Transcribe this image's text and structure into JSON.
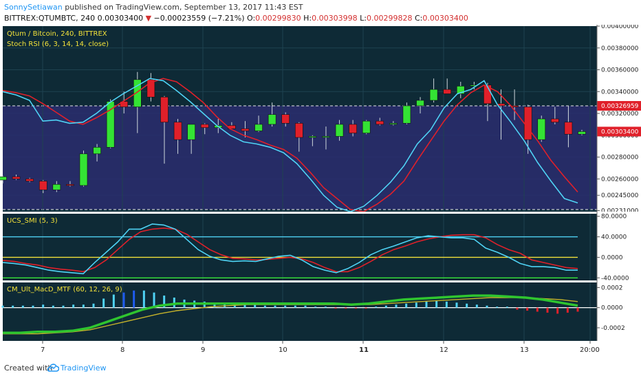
{
  "header": {
    "author": "SonnySetiawan",
    "published_text": "published on TradingView.com, September 13, 2017 11:43 EST",
    "symbol_line": "BITTREX:QTUMBTC, 240",
    "last": "0.00303400",
    "change_arrow": "▼",
    "change": "−0.00023559 (−7.21%)",
    "o_label": "O:",
    "o": "0.00299830",
    "h_label": "H:",
    "h": "0.00303998",
    "l_label": "L:",
    "l": "0.00299828",
    "c_label": "C:",
    "c": "0.00303400"
  },
  "footer": {
    "created_with": "Created with",
    "brand": "TradingView"
  },
  "colors": {
    "background": "#0e2a36",
    "rsi_band": "#2a2d6e",
    "up": "#34e334",
    "down": "#e0202a",
    "k_line": "#4fd3f5",
    "d_line": "#e0202a",
    "label_yellow": "#f3e23a"
  },
  "chart_data": [
    {
      "type": "candlestick",
      "title": "Qtum / Bitcoin, 240, BITTREX",
      "subtitle": "Stoch RSI (6, 3, 14, 14, close)",
      "x_tick_labels": [
        "7",
        "8",
        "9",
        "10",
        "11",
        "12",
        "13",
        "20:00"
      ],
      "y_tick_labels": [
        "0.00400000",
        "0.00380000",
        "0.00360000",
        "0.00340000",
        "0.00320000",
        "0.00300000",
        "0.00280000",
        "0.00260000",
        "0.00245000",
        "0.00231000"
      ],
      "ylim": [
        0.0023,
        0.004
      ],
      "price_labels": [
        "0.00326959",
        "0.00303400"
      ],
      "candles": [
        {
          "o": 0.00259,
          "h": 0.00263,
          "l": 0.00256,
          "c": 0.00262
        },
        {
          "o": 0.00262,
          "h": 0.00264,
          "l": 0.00259,
          "c": 0.0026
        },
        {
          "o": 0.0026,
          "h": 0.00261,
          "l": 0.00257,
          "c": 0.00258
        },
        {
          "o": 0.00258,
          "h": 0.00259,
          "l": 0.00247,
          "c": 0.0025
        },
        {
          "o": 0.0025,
          "h": 0.00258,
          "l": 0.00248,
          "c": 0.00255
        },
        {
          "o": 0.00255,
          "h": 0.00258,
          "l": 0.00253,
          "c": 0.00254
        },
        {
          "o": 0.00254,
          "h": 0.00286,
          "l": 0.00253,
          "c": 0.00283
        },
        {
          "o": 0.00283,
          "h": 0.00292,
          "l": 0.00276,
          "c": 0.00289
        },
        {
          "o": 0.00289,
          "h": 0.00333,
          "l": 0.00288,
          "c": 0.00331
        },
        {
          "o": 0.00331,
          "h": 0.0034,
          "l": 0.0032,
          "c": 0.00326
        },
        {
          "o": 0.00326,
          "h": 0.00358,
          "l": 0.00302,
          "c": 0.00351
        },
        {
          "o": 0.00351,
          "h": 0.00357,
          "l": 0.00331,
          "c": 0.00335
        },
        {
          "o": 0.00335,
          "h": 0.00336,
          "l": 0.00274,
          "c": 0.00312
        },
        {
          "o": 0.00312,
          "h": 0.00315,
          "l": 0.00283,
          "c": 0.00296
        },
        {
          "o": 0.00296,
          "h": 0.0031,
          "l": 0.00283,
          "c": 0.0031
        },
        {
          "o": 0.0031,
          "h": 0.00311,
          "l": 0.00301,
          "c": 0.00307
        },
        {
          "o": 0.00307,
          "h": 0.00315,
          "l": 0.00302,
          "c": 0.00309
        },
        {
          "o": 0.00309,
          "h": 0.00312,
          "l": 0.00305,
          "c": 0.00306
        },
        {
          "o": 0.00306,
          "h": 0.00313,
          "l": 0.00298,
          "c": 0.00304
        },
        {
          "o": 0.00304,
          "h": 0.00318,
          "l": 0.00303,
          "c": 0.0031
        },
        {
          "o": 0.0031,
          "h": 0.0033,
          "l": 0.00308,
          "c": 0.00319
        },
        {
          "o": 0.00319,
          "h": 0.00321,
          "l": 0.00308,
          "c": 0.00311
        },
        {
          "o": 0.00311,
          "h": 0.00312,
          "l": 0.00285,
          "c": 0.00298
        },
        {
          "o": 0.00298,
          "h": 0.003,
          "l": 0.0029,
          "c": 0.00299
        },
        {
          "o": 0.00299,
          "h": 0.00308,
          "l": 0.00287,
          "c": 0.00299
        },
        {
          "o": 0.00299,
          "h": 0.00314,
          "l": 0.00295,
          "c": 0.0031
        },
        {
          "o": 0.0031,
          "h": 0.00314,
          "l": 0.00299,
          "c": 0.00302
        },
        {
          "o": 0.00302,
          "h": 0.00314,
          "l": 0.00301,
          "c": 0.00313
        },
        {
          "o": 0.00313,
          "h": 0.00316,
          "l": 0.00309,
          "c": 0.0031
        },
        {
          "o": 0.0031,
          "h": 0.00313,
          "l": 0.00309,
          "c": 0.00311
        },
        {
          "o": 0.00311,
          "h": 0.0033,
          "l": 0.0031,
          "c": 0.00327
        },
        {
          "o": 0.00327,
          "h": 0.00335,
          "l": 0.0032,
          "c": 0.00332
        },
        {
          "o": 0.00332,
          "h": 0.00352,
          "l": 0.0033,
          "c": 0.00342
        },
        {
          "o": 0.00342,
          "h": 0.00352,
          "l": 0.00338,
          "c": 0.00338
        },
        {
          "o": 0.00338,
          "h": 0.00349,
          "l": 0.00334,
          "c": 0.00345
        },
        {
          "o": 0.00345,
          "h": 0.00349,
          "l": 0.00342,
          "c": 0.00346
        },
        {
          "o": 0.00346,
          "h": 0.00348,
          "l": 0.00313,
          "c": 0.00329
        },
        {
          "o": 0.00329,
          "h": 0.00342,
          "l": 0.00296,
          "c": 0.00327
        },
        {
          "o": 0.00327,
          "h": 0.00342,
          "l": 0.00314,
          "c": 0.00326
        },
        {
          "o": 0.00326,
          "h": 0.00328,
          "l": 0.00283,
          "c": 0.00296
        },
        {
          "o": 0.00296,
          "h": 0.00318,
          "l": 0.00294,
          "c": 0.00315
        },
        {
          "o": 0.00315,
          "h": 0.00326,
          "l": 0.0031,
          "c": 0.00312
        },
        {
          "o": 0.00312,
          "h": 0.00327,
          "l": 0.00289,
          "c": 0.00301
        },
        {
          "o": 0.00301,
          "h": 0.00305,
          "l": 0.003,
          "c": 0.003034
        }
      ],
      "stoch_k": [
        0.0034,
        0.00337,
        0.00332,
        0.00313,
        0.00314,
        0.00311,
        0.00312,
        0.0032,
        0.0033,
        0.00338,
        0.00345,
        0.00352,
        0.0035,
        0.00341,
        0.00331,
        0.0032,
        0.00309,
        0.003,
        0.00294,
        0.00292,
        0.00289,
        0.00284,
        0.00274,
        0.0026,
        0.00245,
        0.00234,
        0.0023,
        0.00235,
        0.00245,
        0.00257,
        0.00272,
        0.00292,
        0.00305,
        0.00325,
        0.00338,
        0.00342,
        0.0035,
        0.00328,
        0.00312,
        0.00295,
        0.00275,
        0.00258,
        0.00242,
        0.00238
      ],
      "stoch_d": [
        0.00341,
        0.00339,
        0.00336,
        0.00329,
        0.00321,
        0.00313,
        0.0031,
        0.00316,
        0.00323,
        0.00331,
        0.00339,
        0.00348,
        0.00352,
        0.00349,
        0.0034,
        0.0033,
        0.00317,
        0.00306,
        0.003,
        0.00296,
        0.00291,
        0.00287,
        0.00279,
        0.00266,
        0.00252,
        0.00242,
        0.00232,
        0.0023,
        0.00237,
        0.00246,
        0.00258,
        0.00277,
        0.00295,
        0.00313,
        0.00328,
        0.00339,
        0.00346,
        0.0034,
        0.00327,
        0.00311,
        0.00295,
        0.00277,
        0.00262,
        0.00248
      ]
    },
    {
      "type": "line",
      "title": "UCS_SMI (5, 3)",
      "y_tick_labels": [
        "80.0000",
        "40.0000",
        "0.0000",
        "-40.0000"
      ],
      "ylim": [
        -45,
        85
      ],
      "levels": [
        40,
        0,
        -40
      ],
      "series": [
        {
          "values": [
            -10,
            -12,
            -15,
            -20,
            -25,
            -28,
            -30,
            -32,
            -10,
            10,
            30,
            55,
            55,
            65,
            63,
            55,
            35,
            15,
            2,
            -5,
            -8,
            -7,
            -8,
            -3,
            2,
            4,
            -5,
            -18,
            -25,
            -30,
            -22,
            -10,
            5,
            15,
            22,
            30,
            38,
            42,
            40,
            38,
            38,
            35,
            18,
            10,
            0,
            -12,
            -18,
            -18,
            -20,
            -25,
            -25
          ]
        },
        {
          "values": [
            -6,
            -8,
            -12,
            -15,
            -20,
            -23,
            -25,
            -28,
            -20,
            -5,
            15,
            35,
            50,
            55,
            57,
            55,
            45,
            30,
            15,
            5,
            -2,
            -3,
            -5,
            -4,
            -2,
            0,
            -3,
            -10,
            -20,
            -28,
            -28,
            -20,
            -8,
            5,
            15,
            22,
            30,
            36,
            40,
            43,
            44,
            44,
            38,
            25,
            15,
            8,
            -5,
            -10,
            -15,
            -20,
            -22
          ]
        }
      ]
    },
    {
      "type": "bar",
      "title": "CM_Ult_MacD_MTF (60, 12, 26, 9)",
      "y_tick_labels": [
        "0.0002",
        "0.0000",
        "-0.0002"
      ],
      "ylim": [
        -0.00033,
        0.00025
      ],
      "histogram": [
        2e-05,
        2e-05,
        2e-05,
        2e-05,
        3e-05,
        2e-05,
        2e-05,
        3e-05,
        3e-05,
        4e-05,
        9e-05,
        0.00013,
        0.00015,
        0.00017,
        0.00017,
        0.00015,
        0.00012,
        0.0001,
        8e-05,
        7e-05,
        6e-05,
        5e-05,
        4e-05,
        4e-05,
        3e-05,
        3e-05,
        2e-05,
        2e-05,
        2e-05,
        2e-05,
        2e-05,
        1e-05,
        1e-05,
        -1e-05,
        -1e-05,
        -1e-05,
        -1e-05,
        1e-05,
        2e-05,
        3e-05,
        4e-05,
        5e-05,
        6e-05,
        7e-05,
        6e-05,
        5e-05,
        4e-05,
        3e-05,
        2e-05,
        1e-05,
        1e-05,
        -2e-05,
        -3e-05,
        -4e-05,
        -5e-05,
        -6e-05,
        -5e-05,
        -4e-05
      ],
      "macd": [
        -0.00025,
        -0.00025,
        -0.00024,
        -0.00024,
        -0.00023,
        -0.0002,
        -0.00014,
        -8e-05,
        -2e-05,
        2e-05,
        4e-05,
        4e-05,
        4e-05,
        4e-05,
        4e-05,
        4e-05,
        4e-05,
        4e-05,
        4e-05,
        4e-05,
        3e-05,
        4e-05,
        6e-05,
        8e-05,
        9e-05,
        0.0001,
        0.00011,
        0.00012,
        0.00012,
        0.00011,
        0.0001,
        8e-05,
        5e-05,
        2e-05
      ],
      "signal": [
        -0.00026,
        -0.00026,
        -0.00026,
        -0.00025,
        -0.00024,
        -0.00022,
        -0.00018,
        -0.00014,
        -0.0001,
        -6e-05,
        -3e-05,
        -1e-05,
        1e-05,
        2e-05,
        3e-05,
        3e-05,
        3e-05,
        3e-05,
        3e-05,
        3e-05,
        3e-05,
        3e-05,
        4e-05,
        5e-05,
        6e-05,
        7e-05,
        8e-05,
        9e-05,
        0.0001,
        0.0001,
        0.0001,
        9e-05,
        8e-05,
        6e-05
      ]
    }
  ]
}
